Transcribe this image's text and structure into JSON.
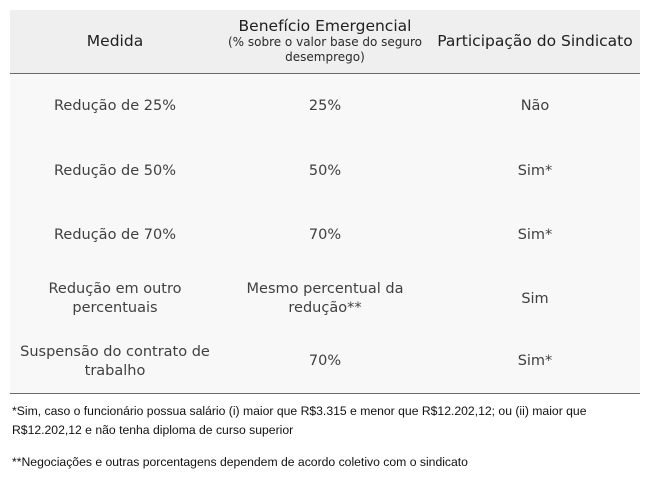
{
  "table": {
    "headers": {
      "medida": "Medida",
      "beneficio": "Benefício Emergencial",
      "beneficio_sub": "(% sobre o valor base do seguro desemprego)",
      "participacao": "Participação do Sindicato"
    },
    "rows": [
      {
        "medida": "Redução de 25%",
        "beneficio": "25%",
        "participacao": "Não"
      },
      {
        "medida": "Redução de 50%",
        "beneficio": "50%",
        "participacao": "Sim*"
      },
      {
        "medida": "Redução de 70%",
        "beneficio": "70%",
        "participacao": "Sim*"
      },
      {
        "medida": "Redução em outro percentuais",
        "beneficio": "Mesmo percentual da redução**",
        "participacao": "Sim"
      },
      {
        "medida": "Suspensão do contrato de trabalho",
        "beneficio": "70%",
        "participacao": "Sim*"
      }
    ]
  },
  "notes": {
    "note1": "*Sim, caso o funcionário possua salário (i) maior que R$3.315 e menor que R$12.202,12; ou (ii) maior que R$12.202,12 e não tenha diploma de curso superior",
    "note2": "**Negociações e outras porcentagens dependem de acordo coletivo com o sindicato"
  }
}
